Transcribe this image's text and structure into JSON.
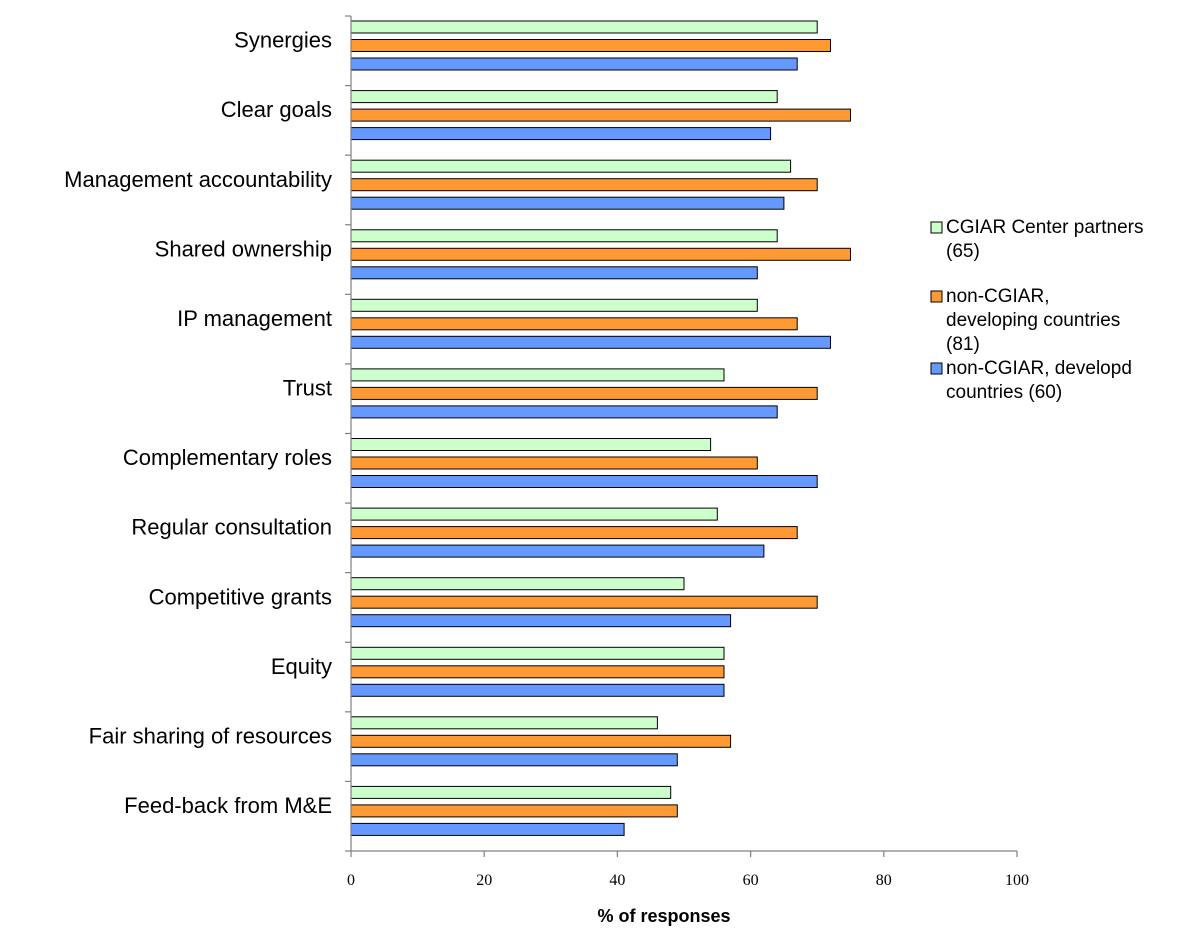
{
  "chart_data": {
    "type": "bar",
    "orientation": "horizontal",
    "categories": [
      "Synergies",
      "Clear goals",
      "Management accountability",
      "Shared ownership",
      "IP management",
      "Trust",
      "Complementary roles",
      "Regular consultation",
      "Competitive grants",
      "Equity",
      "Fair sharing of resources",
      "Feed-back from M&E"
    ],
    "series": [
      {
        "name": "CGIAR Center partners (65)",
        "legend_lines": [
          "CGIAR Center partners",
          "(65)"
        ],
        "color": "#ccffcc",
        "values": [
          70,
          64,
          66,
          64,
          61,
          56,
          54,
          55,
          50,
          56,
          46,
          48
        ]
      },
      {
        "name": "non-CGIAR, developing countries (81)",
        "legend_lines": [
          "non-CGIAR,",
          "developing countries",
          "(81)"
        ],
        "color": "#ff9933",
        "values": [
          72,
          75,
          70,
          75,
          67,
          70,
          61,
          67,
          70,
          56,
          57,
          49
        ]
      },
      {
        "name": "non-CGIAR, developd countries (60)",
        "legend_lines": [
          "non-CGIAR, developd",
          "countries (60)"
        ],
        "color": "#6699ff",
        "values": [
          67,
          63,
          65,
          61,
          72,
          64,
          70,
          62,
          57,
          56,
          49,
          41
        ]
      }
    ],
    "xlabel": "% of responses",
    "xlim": [
      0,
      100
    ],
    "xticks": [
      "0",
      "20",
      "40",
      "60",
      "80",
      "100"
    ],
    "legend_position": "right",
    "grid": false
  }
}
